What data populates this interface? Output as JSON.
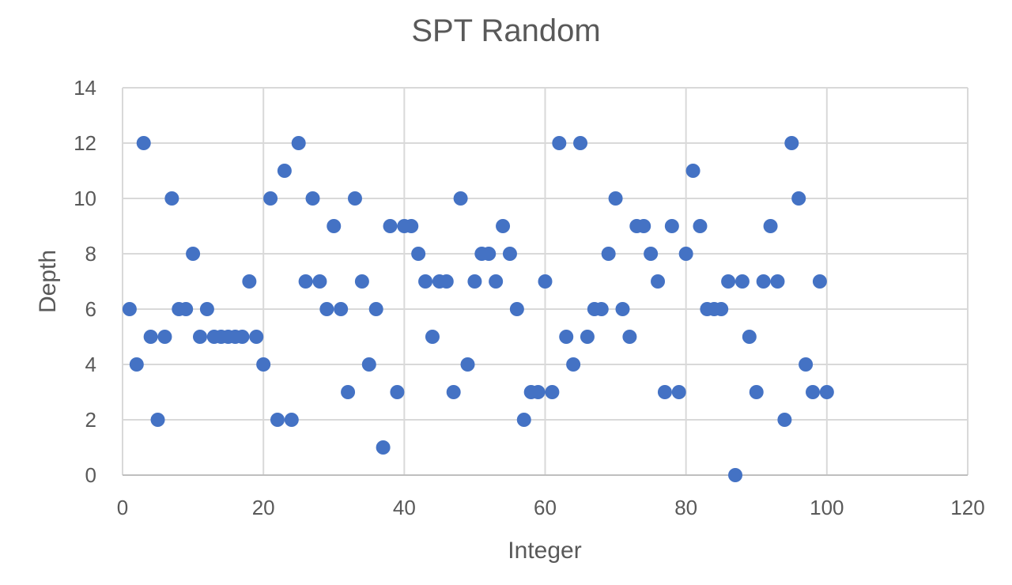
{
  "chart_data": {
    "type": "scatter",
    "title": "SPT Random",
    "xlabel": "Integer",
    "ylabel": "Depth",
    "xlim": [
      0,
      120
    ],
    "ylim": [
      0,
      14
    ],
    "xticks": [
      0,
      20,
      40,
      60,
      80,
      100,
      120
    ],
    "yticks": [
      0,
      2,
      4,
      6,
      8,
      10,
      12,
      14
    ],
    "grid": true,
    "legend": "none",
    "marker_color": "#4472c4",
    "x": [
      1,
      2,
      3,
      4,
      5,
      6,
      7,
      8,
      9,
      10,
      11,
      12,
      13,
      14,
      15,
      16,
      17,
      18,
      19,
      20,
      21,
      22,
      23,
      24,
      25,
      26,
      27,
      28,
      29,
      30,
      31,
      32,
      33,
      34,
      35,
      36,
      37,
      38,
      39,
      40,
      41,
      42,
      43,
      44,
      45,
      46,
      47,
      48,
      49,
      50,
      51,
      52,
      53,
      54,
      55,
      56,
      57,
      58,
      59,
      60,
      61,
      62,
      63,
      64,
      65,
      66,
      67,
      68,
      69,
      70,
      71,
      72,
      73,
      74,
      75,
      76,
      77,
      78,
      79,
      80,
      81,
      82,
      83,
      84,
      85,
      86,
      87,
      88,
      89,
      90,
      91,
      92,
      93,
      94,
      95,
      96,
      97,
      98,
      99,
      100
    ],
    "y": [
      6,
      4,
      12,
      5,
      2,
      5,
      10,
      6,
      6,
      8,
      5,
      6,
      5,
      5,
      5,
      5,
      5,
      7,
      5,
      4,
      10,
      2,
      11,
      2,
      12,
      7,
      10,
      7,
      6,
      9,
      6,
      3,
      10,
      7,
      4,
      6,
      1,
      9,
      3,
      9,
      9,
      8,
      7,
      5,
      7,
      7,
      3,
      10,
      4,
      7,
      8,
      8,
      7,
      9,
      8,
      6,
      2,
      3,
      3,
      7,
      3,
      12,
      5,
      4,
      12,
      5,
      6,
      6,
      8,
      10,
      6,
      5,
      9,
      9,
      8,
      7,
      3,
      9,
      3,
      8,
      11,
      9,
      6,
      6,
      6,
      7,
      0,
      7,
      5,
      3,
      7,
      9,
      7,
      2,
      12,
      10,
      4,
      3,
      7,
      3
    ]
  }
}
